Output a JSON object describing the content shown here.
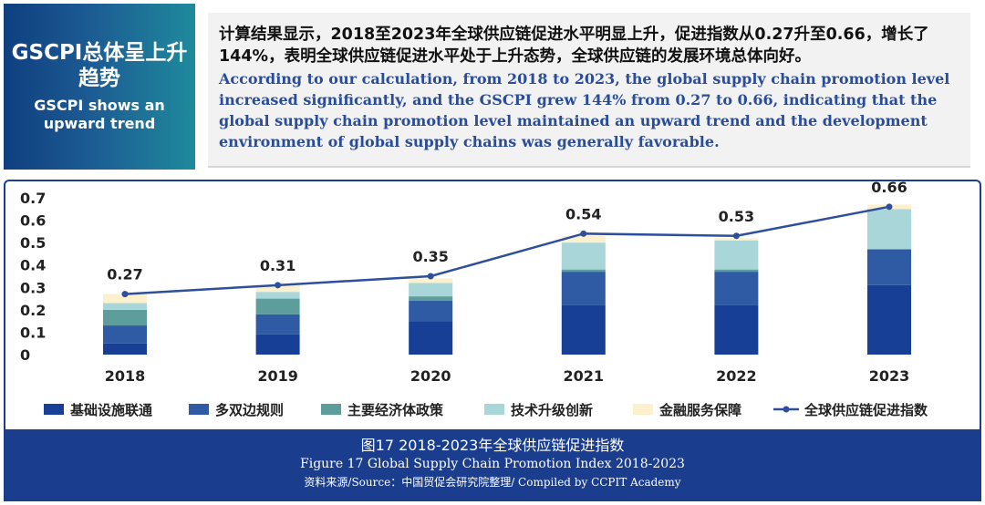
{
  "header": {
    "title_zh": "GSCPI总体呈上升趋势",
    "title_en": "GSCPI shows an upward trend",
    "summary_zh": "计算结果显示，2018至2023年全球供应链促进水平明显上升，促进指数从0.27升至0.66，增长了144%，表明全球供应链促进水平处于上升态势，全球供应链的发展环境总体向好。",
    "summary_en": "According to our calculation, from 2018 to 2023, the global supply chain promotion level increased significantly, and the GSCPI grew 144% from 0.27 to 0.66, indicating that the global supply chain promotion level maintained an upward trend and the development environment of global supply chains was generally favorable."
  },
  "chart_data": {
    "type": "bar",
    "title": "图17 2018-2023年全球供应链促进指数",
    "categories": [
      "2018",
      "2019",
      "2020",
      "2021",
      "2022",
      "2023"
    ],
    "ylim": [
      0,
      0.7
    ],
    "yticks": [
      "0",
      "0.1",
      "0.2",
      "0.3",
      "0.4",
      "0.5",
      "0.6",
      "0.7"
    ],
    "stacked": true,
    "series": [
      {
        "name": "基础设施联通",
        "color": "#173f95",
        "values": [
          0.05,
          0.09,
          0.15,
          0.22,
          0.22,
          0.31
        ]
      },
      {
        "name": "多双边规则",
        "color": "#2e5ba3",
        "values": [
          0.08,
          0.09,
          0.09,
          0.15,
          0.15,
          0.16
        ]
      },
      {
        "name": "主要经济体政策",
        "color": "#5d9d9c",
        "values": [
          0.07,
          0.07,
          0.02,
          0.01,
          0.01,
          0.0
        ]
      },
      {
        "name": "技术升级创新",
        "color": "#a9d6d9",
        "values": [
          0.03,
          0.03,
          0.06,
          0.12,
          0.13,
          0.18
        ]
      },
      {
        "name": "金融服务保障",
        "color": "#fdf0cd",
        "values": [
          0.04,
          0.03,
          0.02,
          0.03,
          0.01,
          0.02
        ]
      }
    ],
    "line": {
      "name": "全球供应链促进指数",
      "color": "#2e4f9e",
      "values": [
        0.27,
        0.31,
        0.35,
        0.54,
        0.53,
        0.66
      ],
      "labels": [
        "0.27",
        "0.31",
        "0.35",
        "0.54",
        "0.53",
        "0.66"
      ]
    }
  },
  "footer": {
    "caption_zh": "图17 2018-2023年全球供应链促进指数",
    "caption_en": "Figure 17  Global Supply Chain Promotion Index 2018-2023",
    "source": "资料来源/Source：中国贸促会研究院整理/ Compiled by CCPIT Academy"
  }
}
